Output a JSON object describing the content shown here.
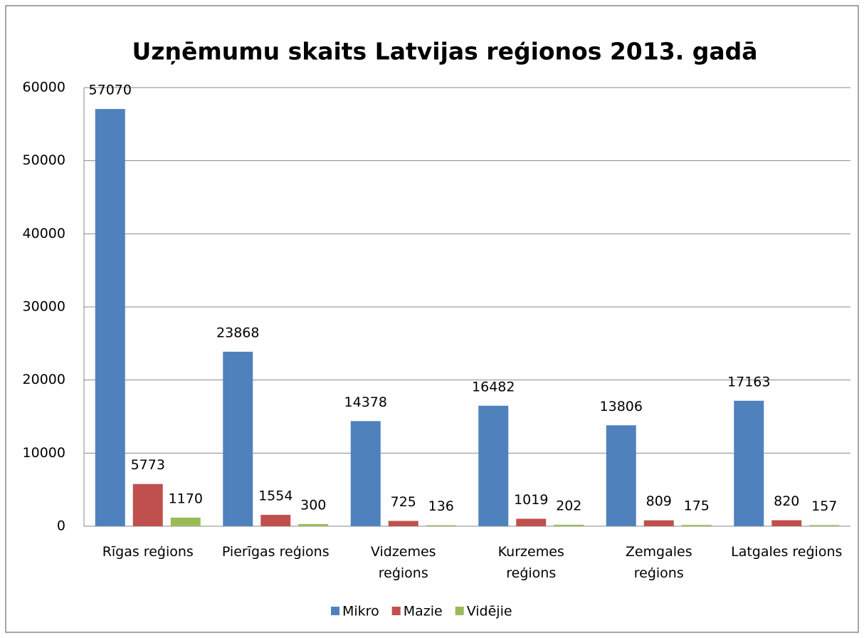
{
  "chart_data": {
    "type": "bar",
    "title": "Uzņēmumu skaits Latvijas reģionos 2013. gadā",
    "categories": [
      "Rīgas reģions",
      "Pierīgas reģions",
      "Vidzemes reģions",
      "Kurzemes reģions",
      "Zemgales reģions",
      "Latgales reģions"
    ],
    "series": [
      {
        "name": "Mikro",
        "color": "#4f81bd",
        "values": [
          57070,
          23868,
          14378,
          16482,
          13806,
          17163
        ]
      },
      {
        "name": "Mazie",
        "color": "#c0504d",
        "values": [
          5773,
          1554,
          725,
          1019,
          809,
          820
        ]
      },
      {
        "name": "Vidējie",
        "color": "#9bbb59",
        "values": [
          1170,
          300,
          136,
          202,
          175,
          157
        ]
      }
    ],
    "ylim": [
      0,
      60000
    ],
    "yticks": [
      0,
      10000,
      20000,
      30000,
      40000,
      50000,
      60000
    ],
    "grid": true,
    "legend": "bottom"
  }
}
